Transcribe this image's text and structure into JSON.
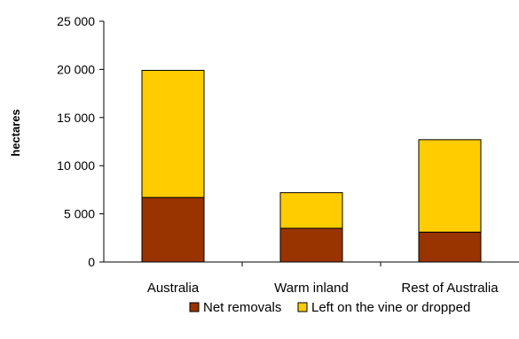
{
  "chart_data": {
    "type": "bar",
    "stacked": true,
    "categories": [
      "Australia",
      "Warm inland",
      "Rest of Australia"
    ],
    "series": [
      {
        "name": "Net removals",
        "color": "#993300",
        "values": [
          6700,
          3500,
          3100
        ]
      },
      {
        "name": "Left on the vine or dropped",
        "color": "#FFCC00",
        "values": [
          13200,
          3700,
          9600
        ]
      }
    ],
    "title": "",
    "xlabel": "",
    "ylabel": "hectares",
    "ylim": [
      0,
      25000
    ],
    "yticks": [
      0,
      5000,
      10000,
      15000,
      20000,
      25000
    ],
    "ytick_labels": [
      "0",
      "5 000",
      "10 000",
      "15 000",
      "20 000",
      "25 000"
    ],
    "grid": false,
    "legend_position": "bottom"
  }
}
